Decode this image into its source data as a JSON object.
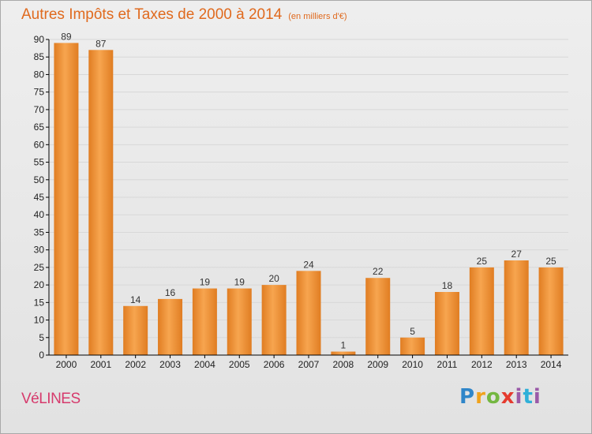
{
  "title": "Autres Impôts et Taxes de 2000 à 2014",
  "unit_note": "(en milliers d'€)",
  "commune": "VéLINES",
  "logo_text": "Proxiti",
  "colors": {
    "title": "#e06a1e",
    "bar_light": "#f7a54f",
    "bar_dark": "#e07d22",
    "grid": "#d8d8d8",
    "axis": "#000000",
    "commune": "#d63a6c"
  },
  "chart_data": {
    "type": "bar",
    "title": "Autres Impôts et Taxes de 2000 à 2014",
    "subtitle": "(en milliers d'€)",
    "categories": [
      "2000",
      "2001",
      "2002",
      "2003",
      "2004",
      "2005",
      "2006",
      "2007",
      "2008",
      "2009",
      "2010",
      "2011",
      "2012",
      "2013",
      "2014"
    ],
    "values": [
      89,
      87,
      14,
      16,
      19,
      19,
      20,
      24,
      1,
      22,
      5,
      18,
      25,
      27,
      25
    ],
    "ylim": [
      0,
      90
    ],
    "yticks": [
      0,
      5,
      10,
      15,
      20,
      25,
      30,
      35,
      40,
      45,
      50,
      55,
      60,
      65,
      70,
      75,
      80,
      85,
      90
    ],
    "grid": true,
    "data_labels": true
  }
}
